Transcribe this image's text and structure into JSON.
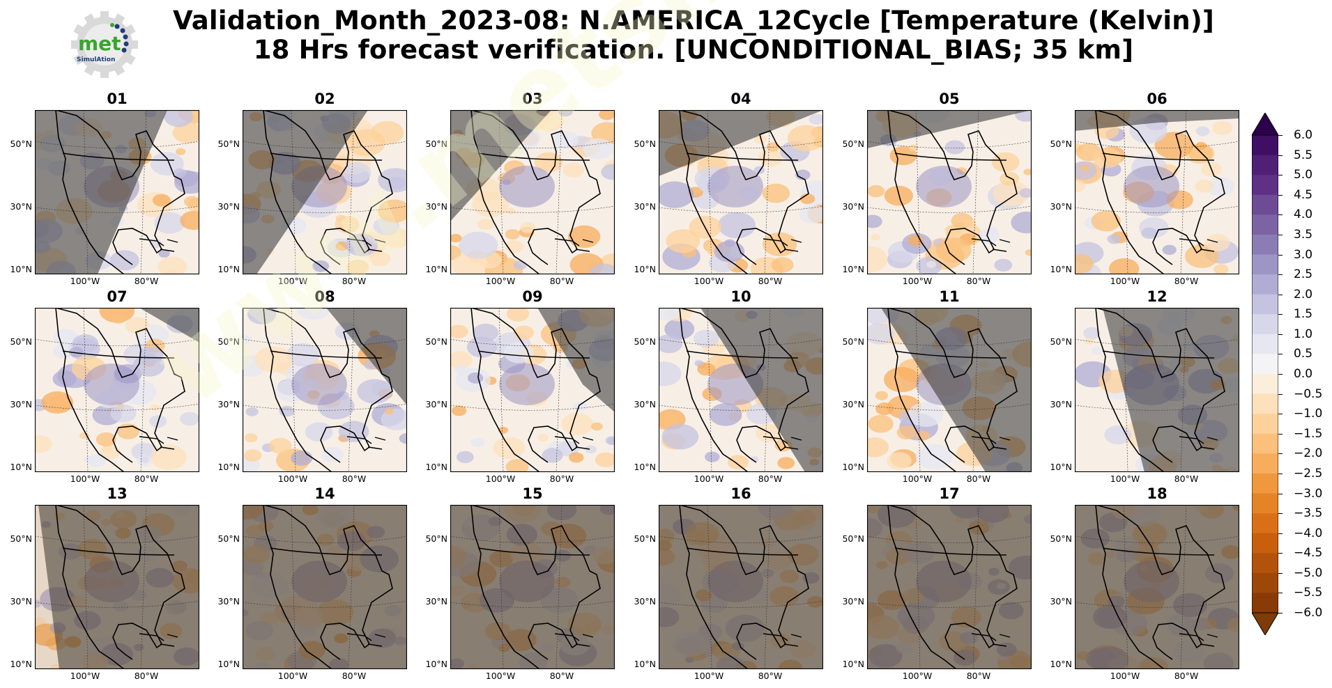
{
  "header": {
    "title_line1": "Validation_Month_2023-08: N.AMERICA_12Cycle [Temperature (Kelvin)]",
    "title_line2": "18 Hrs forecast verification. [UNCONDITIONAL_BIAS; 35 km]"
  },
  "logo": {
    "text_main": "met",
    "text_sub": "SimulAtion"
  },
  "watermark": "www.metsimulation.com",
  "map_labels": {
    "lat": [
      "50°N",
      "30°N",
      "10°N"
    ],
    "lon": [
      "100°W",
      "80°W"
    ]
  },
  "panels": [
    {
      "title": "01",
      "night": "left",
      "tilt": 55
    },
    {
      "title": "02",
      "night": "left",
      "tilt": 42
    },
    {
      "title": "03",
      "night": "left",
      "tilt": 30
    },
    {
      "title": "04",
      "night": "top-left",
      "tilt": 20
    },
    {
      "title": "05",
      "night": "top",
      "tilt": 10
    },
    {
      "title": "06",
      "night": "top",
      "tilt": 0
    },
    {
      "title": "07",
      "night": "top-right",
      "tilt": 0
    },
    {
      "title": "08",
      "night": "right",
      "tilt": 0
    },
    {
      "title": "09",
      "night": "right",
      "tilt": 0
    },
    {
      "title": "10",
      "night": "right",
      "tilt": 0
    },
    {
      "title": "11",
      "night": "right-full",
      "tilt": 0
    },
    {
      "title": "12",
      "night": "right-full",
      "tilt": 0
    },
    {
      "title": "13",
      "night": "most",
      "tilt": 0
    },
    {
      "title": "14",
      "night": "all",
      "tilt": 0
    },
    {
      "title": "15",
      "night": "all",
      "tilt": 0
    },
    {
      "title": "16",
      "night": "all",
      "tilt": 0
    },
    {
      "title": "17",
      "night": "all",
      "tilt": 0
    },
    {
      "title": "18",
      "night": "all",
      "tilt": 0
    }
  ],
  "colorbar": {
    "labels": [
      "6.0",
      "5.5",
      "5.0",
      "4.5",
      "4.0",
      "3.5",
      "3.0",
      "2.5",
      "2.0",
      "1.5",
      "1.0",
      "0.5",
      "0.0",
      "−0.5",
      "−1.0",
      "−1.5",
      "−2.0",
      "−2.5",
      "−3.0",
      "−3.5",
      "−4.0",
      "−4.5",
      "−5.0",
      "−5.5",
      "−6.0"
    ],
    "colors_top_to_bottom": [
      "#3f0f63",
      "#4f2075",
      "#5e3187",
      "#6e4b95",
      "#7c64a4",
      "#8b7db3",
      "#9d95c3",
      "#b0acd3",
      "#c4c3e0",
      "#d7d7ea",
      "#e6e7f1",
      "#f4f4f6",
      "#fbeedb",
      "#fde0bc",
      "#fdd19b",
      "#fbc07b",
      "#f8ad5c",
      "#f0983e",
      "#e58427",
      "#d97017",
      "#c85f0d",
      "#b3520a",
      "#9d4708",
      "#883b06"
    ],
    "extend_top": "#2d004b",
    "extend_bottom": "#7f3b08"
  }
}
